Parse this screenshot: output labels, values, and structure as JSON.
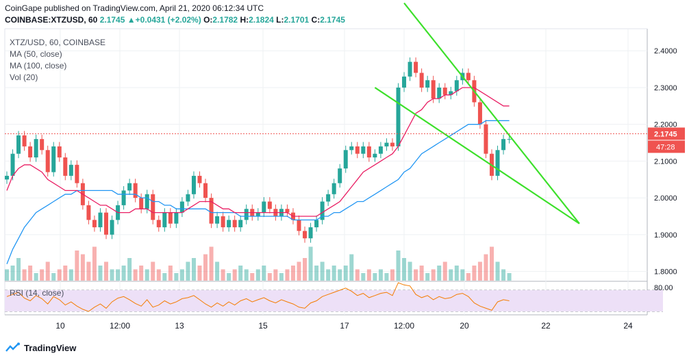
{
  "header": {
    "published": "CoinGape published on TradingView.com, April 21, 2020 06:12:34 UTC",
    "symbol": "COINBASE:XTZUSD, 60",
    "price": "2.1745",
    "change": "+0.0431 (+2.02%)",
    "o_label": "O:",
    "o": "2.1782",
    "h_label": "H:",
    "h": "2.1824",
    "l_label": "L:",
    "l": "2.1701",
    "c_label": "C:",
    "c": "2.1745"
  },
  "legend": {
    "pair": "XTZ/USD, 60, COINBASE",
    "ma50": "MA (50, close)",
    "ma100": "MA (100, close)",
    "vol": "Vol (20)",
    "rsi": "RSI (14, close)"
  },
  "price_badge": "2.1745",
  "time_badge": "47:28",
  "footer": {
    "brand": "TradingView"
  },
  "colors": {
    "up": "#26a69a",
    "down": "#ef5350",
    "ma50": "#e91e63",
    "ma100": "#2196f3",
    "trend": "#3de02b",
    "rsi": "#f57c00",
    "rsi_band": "#ede0f7",
    "badge": "#ef5350"
  },
  "chart_data": {
    "type": "candlestick",
    "price_axis": {
      "ticks": [
        "2.4000",
        "2.3000",
        "2.2000",
        "2.1000",
        "2.0000",
        "1.9000",
        "1.8000"
      ],
      "range": [
        1.775,
        2.46
      ]
    },
    "rsi_axis": {
      "ticks": [
        "80.00"
      ]
    },
    "x_ticks": [
      "10",
      "12:00",
      "13",
      "15",
      "17",
      "12:00",
      "20",
      "22",
      "24"
    ],
    "last_price": 2.1745,
    "price_series": [
      2.06,
      2.12,
      2.17,
      2.14,
      2.11,
      2.16,
      2.13,
      2.07,
      2.14,
      2.11,
      2.06,
      2.09,
      2.04,
      1.98,
      1.94,
      1.92,
      1.96,
      1.9,
      1.94,
      1.98,
      2.02,
      2.04,
      2.0,
      1.97,
      2.01,
      1.94,
      1.92,
      1.96,
      1.93,
      1.96,
      1.99,
      2.01,
      2.06,
      2.04,
      2.0,
      1.93,
      1.95,
      1.92,
      1.94,
      1.92,
      1.94,
      1.97,
      1.95,
      1.96,
      1.99,
      1.97,
      1.95,
      1.97,
      1.96,
      1.94,
      1.91,
      1.89,
      1.92,
      1.94,
      1.99,
      2.01,
      2.04,
      2.08,
      2.13,
      2.14,
      2.12,
      2.14,
      2.11,
      2.12,
      2.14,
      2.15,
      2.14,
      2.3,
      2.33,
      2.37,
      2.34,
      2.3,
      2.32,
      2.27,
      2.3,
      2.28,
      2.29,
      2.32,
      2.34,
      2.32,
      2.26,
      2.2,
      2.12,
      2.06,
      2.13,
      2.16,
      2.16
    ],
    "ma50_series": [
      2.02,
      2.06,
      2.08,
      2.09,
      2.09,
      2.08,
      2.07,
      2.05,
      2.04,
      2.03,
      2.02,
      2.02,
      2.02,
      2.01,
      2.0,
      1.99,
      1.98,
      1.98,
      1.97,
      1.96,
      1.96,
      1.96,
      1.97,
      1.97,
      1.97,
      1.96,
      1.96,
      1.96,
      1.96,
      1.96,
      1.96,
      1.97,
      1.98,
      1.99,
      1.99,
      1.99,
      1.98,
      1.97,
      1.97,
      1.96,
      1.96,
      1.96,
      1.96,
      1.96,
      1.96,
      1.96,
      1.96,
      1.96,
      1.96,
      1.95,
      1.95,
      1.95,
      1.95,
      1.95,
      1.96,
      1.97,
      1.98,
      1.99,
      2.01,
      2.03,
      2.05,
      2.07,
      2.08,
      2.09,
      2.1,
      2.11,
      2.12,
      2.14,
      2.17,
      2.2,
      2.23,
      2.24,
      2.26,
      2.27,
      2.27,
      2.28,
      2.28,
      2.29,
      2.3,
      2.3,
      2.3,
      2.29,
      2.28,
      2.27,
      2.26,
      2.25,
      2.25
    ],
    "ma100_series": [
      1.82,
      1.86,
      1.89,
      1.92,
      1.94,
      1.96,
      1.97,
      1.98,
      1.99,
      2.0,
      2.01,
      2.01,
      2.02,
      2.02,
      2.02,
      2.02,
      2.02,
      2.02,
      2.02,
      2.01,
      2.01,
      2.01,
      2.01,
      2.0,
      2.0,
      1.99,
      1.99,
      1.98,
      1.98,
      1.97,
      1.97,
      1.97,
      1.97,
      1.97,
      1.97,
      1.96,
      1.96,
      1.96,
      1.96,
      1.96,
      1.95,
      1.95,
      1.95,
      1.95,
      1.95,
      1.95,
      1.95,
      1.95,
      1.95,
      1.94,
      1.94,
      1.94,
      1.94,
      1.94,
      1.95,
      1.95,
      1.96,
      1.96,
      1.97,
      1.98,
      1.99,
      1.99,
      2.0,
      2.01,
      2.02,
      2.03,
      2.04,
      2.05,
      2.07,
      2.08,
      2.1,
      2.12,
      2.13,
      2.14,
      2.15,
      2.16,
      2.17,
      2.18,
      2.19,
      2.2,
      2.2,
      2.2,
      2.21,
      2.21,
      2.21,
      2.21,
      2.21
    ],
    "volume_series": [
      0.3,
      0.4,
      0.6,
      0.3,
      0.4,
      0.2,
      0.3,
      0.5,
      0.2,
      0.3,
      0.4,
      0.3,
      0.8,
      0.7,
      0.5,
      0.9,
      0.4,
      0.5,
      0.3,
      0.3,
      0.4,
      0.6,
      0.3,
      0.4,
      0.3,
      0.5,
      0.3,
      0.2,
      0.4,
      0.2,
      0.3,
      0.5,
      0.6,
      0.4,
      0.7,
      0.9,
      0.5,
      0.3,
      0.2,
      0.3,
      0.4,
      0.3,
      0.2,
      0.3,
      0.4,
      0.2,
      0.3,
      0.2,
      0.3,
      0.4,
      0.5,
      0.6,
      0.9,
      0.4,
      0.5,
      0.3,
      0.4,
      0.3,
      0.4,
      0.7,
      0.3,
      0.2,
      0.3,
      0.2,
      0.3,
      0.2,
      0.3,
      0.8,
      0.6,
      0.5,
      0.3,
      0.4,
      0.2,
      0.3,
      0.4,
      0.5,
      0.3,
      0.4,
      0.3,
      0.2,
      0.4,
      0.5,
      0.7,
      0.9,
      0.5,
      0.3,
      0.2
    ],
    "rsi_series": [
      58,
      62,
      66,
      55,
      50,
      60,
      54,
      44,
      58,
      52,
      42,
      48,
      40,
      34,
      30,
      38,
      44,
      36,
      48,
      55,
      58,
      52,
      45,
      40,
      52,
      38,
      42,
      50,
      44,
      48,
      54,
      56,
      60,
      52,
      44,
      38,
      46,
      40,
      48,
      42,
      50,
      54,
      48,
      52,
      56,
      50,
      46,
      52,
      48,
      44,
      38,
      36,
      46,
      50,
      58,
      62,
      66,
      70,
      74,
      68,
      60,
      64,
      56,
      60,
      64,
      66,
      60,
      84,
      80,
      78,
      62,
      56,
      60,
      52,
      58,
      54,
      56,
      62,
      64,
      58,
      46,
      40,
      36,
      32,
      48,
      52,
      50
    ],
    "trendlines": [
      {
        "from": [
          68,
          2.53
        ],
        "to": [
          98,
          1.93
        ]
      },
      {
        "from": [
          63,
          2.3
        ],
        "to": [
          98,
          1.93
        ]
      }
    ]
  }
}
